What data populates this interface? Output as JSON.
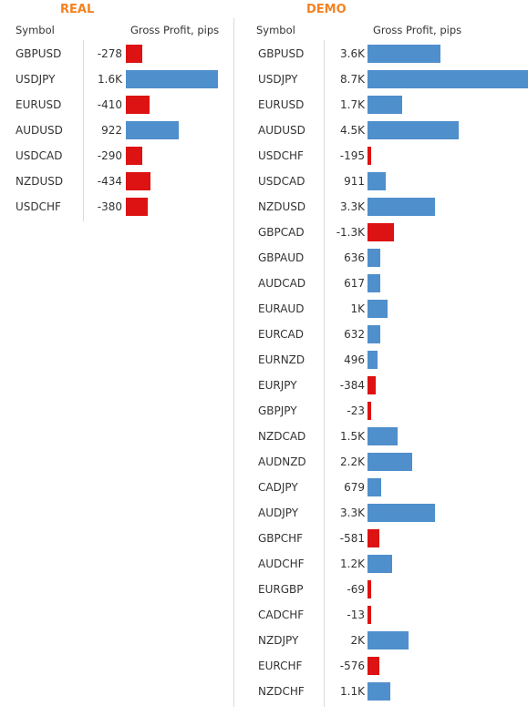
{
  "chart_data": [
    {
      "type": "bar",
      "title": "REAL",
      "xlabel": "Gross Profit, pips",
      "ylabel": "Symbol",
      "categories": [
        "GBPUSD",
        "USDJPY",
        "EURUSD",
        "AUDUSD",
        "USDCAD",
        "NZDUSD",
        "USDCHF"
      ],
      "values": [
        -278,
        1600,
        -410,
        922,
        -290,
        -434,
        -380
      ],
      "labels": [
        "-278",
        "1.6K",
        "-410",
        "922",
        "-290",
        "-434",
        "-380"
      ]
    },
    {
      "type": "bar",
      "title": "DEMO",
      "xlabel": "Gross Profit, pips",
      "ylabel": "Symbol",
      "categories": [
        "GBPUSD",
        "USDJPY",
        "EURUSD",
        "AUDUSD",
        "USDCHF",
        "USDCAD",
        "NZDUSD",
        "GBPCAD",
        "GBPAUD",
        "AUDCAD",
        "EURAUD",
        "EURCAD",
        "EURNZD",
        "EURJPY",
        "GBPJPY",
        "NZDCAD",
        "AUDNZD",
        "CADJPY",
        "AUDJPY",
        "GBPCHF",
        "AUDCHF",
        "EURGBP",
        "CADCHF",
        "NZDJPY",
        "EURCHF",
        "NZDCHF"
      ],
      "values": [
        3600,
        8700,
        1700,
        4500,
        -195,
        911,
        3300,
        -1300,
        636,
        617,
        1000,
        632,
        496,
        -384,
        -23,
        1500,
        2200,
        679,
        3300,
        -581,
        1200,
        -69,
        -13,
        2000,
        -576,
        1100
      ],
      "labels": [
        "3.6K",
        "8.7K",
        "1.7K",
        "4.5K",
        "-195",
        "911",
        "3.3K",
        "-1.3K",
        "636",
        "617",
        "1K",
        "632",
        "496",
        "-384",
        "-23",
        "1.5K",
        "2.2K",
        "679",
        "3.3K",
        "-581",
        "1.2K",
        "-69",
        "-13",
        "2K",
        "-576",
        "1.1K"
      ]
    }
  ],
  "colors": {
    "positive": "#4f8fcc",
    "negative": "#dd1212",
    "title": "#f58220"
  }
}
